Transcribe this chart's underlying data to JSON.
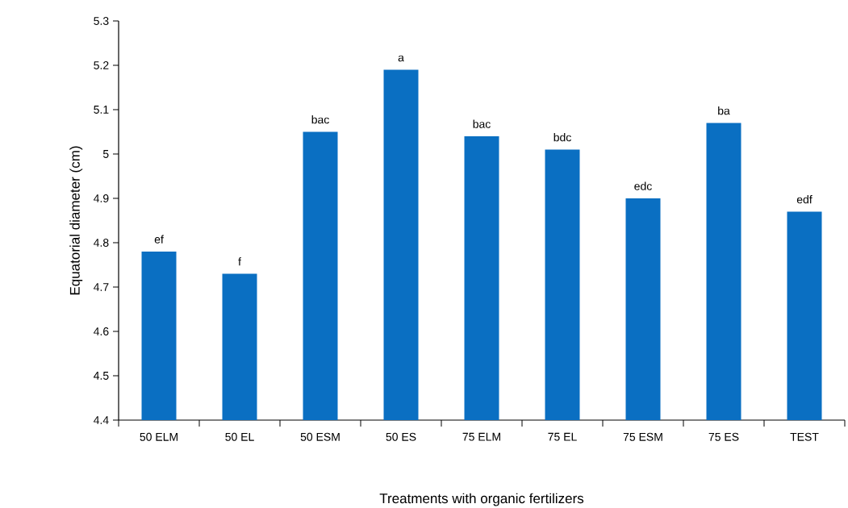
{
  "chart_data": {
    "type": "bar",
    "xlabel": "Treatments with organic fertilizers",
    "ylabel": "Equatorial diameter (cm)",
    "categories": [
      "50 ELM",
      "50 EL",
      "50 ESM",
      "50 ES",
      "75 ELM",
      "75 EL",
      "75 ESM",
      "75 ES",
      "TEST"
    ],
    "values": [
      4.78,
      4.73,
      5.05,
      5.19,
      5.04,
      5.01,
      4.9,
      5.07,
      4.87
    ],
    "color": "#0a6fc2",
    "ylim": [
      4.4,
      5.3
    ],
    "yticks": [
      4.4,
      4.5,
      4.6,
      4.7,
      4.8,
      4.9,
      {
        "value": 5,
        "label": "5"
      },
      5.1,
      5.2,
      5.3
    ],
    "annotations": [
      {
        "text": "ef",
        "x": "50 ELM",
        "y": 4.78
      },
      {
        "text": "f",
        "x": "50 EL",
        "y": 4.73
      },
      {
        "text": "bac",
        "x": "50 ESM",
        "y": 5.05
      },
      {
        "text": "a",
        "x": "50 ES",
        "y": 5.19
      },
      {
        "text": "bac",
        "x": "75 ELM",
        "y": 5.04
      },
      {
        "text": "bdc",
        "x": "75 EL",
        "y": 5.01
      },
      {
        "text": "edc",
        "x": "75 ESM",
        "y": 4.9
      },
      {
        "text": "ba",
        "x": "75 ES",
        "y": 5.07
      },
      {
        "text": "edf",
        "x": "TEST",
        "y": 4.87
      }
    ]
  }
}
